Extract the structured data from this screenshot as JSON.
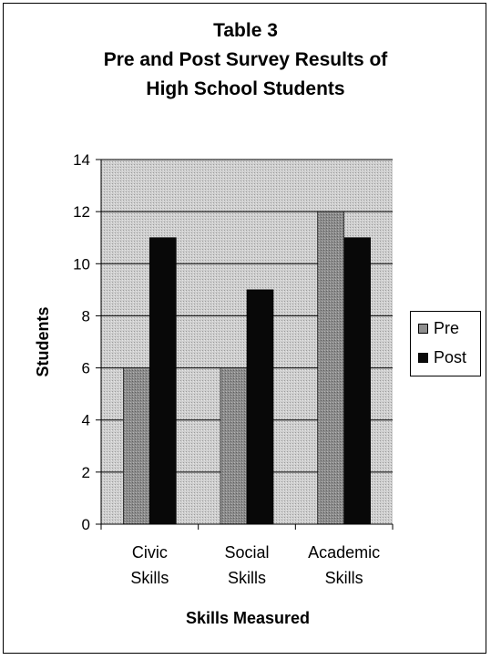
{
  "chart_data": {
    "type": "bar",
    "title_lines": [
      "Table 3",
      "Pre and Post Survey Results of",
      "High School Students"
    ],
    "categories": [
      [
        "Civic",
        "Skills"
      ],
      [
        "Social",
        "Skills"
      ],
      [
        "Academic",
        "Skills"
      ]
    ],
    "series": [
      {
        "name": "Pre",
        "values": [
          6,
          6,
          12
        ],
        "color": "#8f8f8f"
      },
      {
        "name": "Post",
        "values": [
          11,
          9,
          11
        ],
        "color": "#0a0a0a"
      }
    ],
    "xlabel": "Skills Measured",
    "ylabel": "Students",
    "ylim": [
      0,
      14
    ],
    "yticks": [
      0,
      2,
      4,
      6,
      8,
      10,
      12,
      14
    ],
    "grid": true,
    "legend_position": "right"
  }
}
